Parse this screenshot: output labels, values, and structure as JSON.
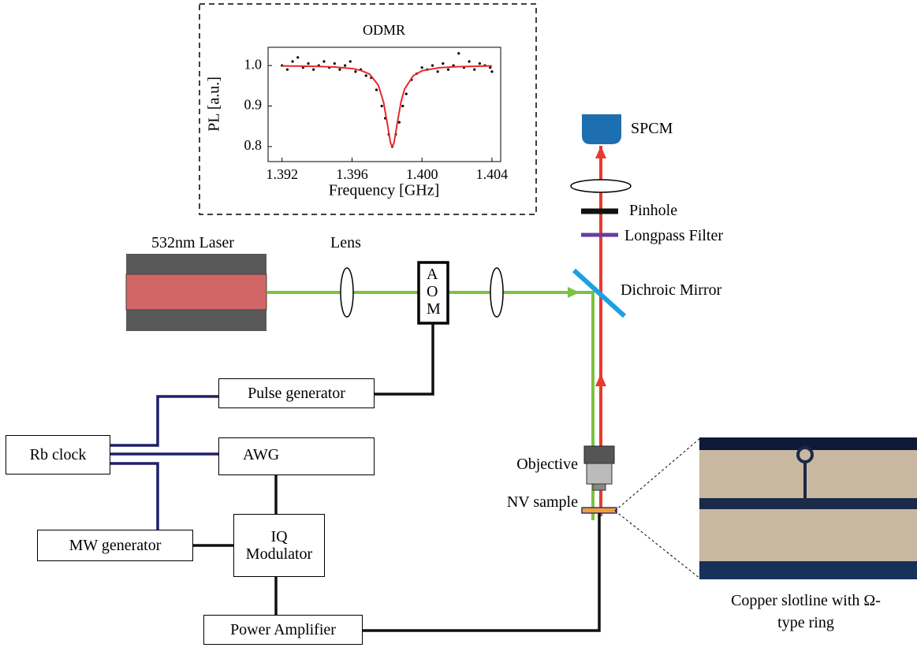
{
  "chart_data": {
    "type": "scatter",
    "title": "ODMR",
    "x_label": "Frequency [GHz]",
    "y_label": "PL [a.u.]",
    "xlim": [
      1.3912,
      1.4045
    ],
    "ylim": [
      0.763,
      1.045
    ],
    "xticks": [
      1.392,
      1.396,
      {
        "value": 1.4,
        "label": "1.400"
      },
      1.404
    ],
    "yticks": [
      {
        "value": 1,
        "label": "1.0"
      },
      0.9,
      0.8
    ],
    "series": [
      {
        "type": "scatter",
        "color": "#000000",
        "x": [
          1.392,
          1.3923,
          1.3926,
          1.3929,
          1.3932,
          1.3935,
          1.3938,
          1.3941,
          1.3944,
          1.3947,
          1.395,
          1.3953,
          1.3956,
          1.3959,
          1.3962,
          1.3965,
          1.3968,
          1.3971,
          1.3974,
          1.3977,
          1.3979,
          1.3981,
          1.3983,
          1.3985,
          1.3987,
          1.3989,
          1.3991,
          1.3994,
          1.3997,
          1.4,
          1.4003,
          1.4006,
          1.4009,
          1.4012,
          1.4015,
          1.4018,
          1.4021,
          1.4024,
          1.4027,
          1.403,
          1.4033,
          1.4036,
          1.4039,
          1.404
        ],
        "values": [
          1.0,
          0.99,
          1.01,
          1.02,
          0.995,
          1.005,
          0.99,
          1.0,
          1.01,
          0.995,
          1.005,
          0.99,
          1.0,
          1.01,
          0.985,
          0.99,
          0.975,
          0.97,
          0.94,
          0.9,
          0.87,
          0.83,
          0.8,
          0.83,
          0.86,
          0.9,
          0.93,
          0.965,
          0.98,
          0.995,
          0.99,
          1.0,
          0.985,
          1.005,
          0.99,
          1.0,
          1.03,
          0.995,
          1.01,
          0.99,
          1.005,
          1.0,
          0.995,
          0.985
        ]
      },
      {
        "type": "line",
        "color": "#e8282b",
        "x": [
          1.392,
          1.393,
          1.394,
          1.395,
          1.396,
          1.3965,
          1.397,
          1.3975,
          1.3978,
          1.398,
          1.3982,
          1.3983,
          1.3984,
          1.3986,
          1.3988,
          1.399,
          1.3995,
          1.4,
          1.401,
          1.402,
          1.403,
          1.404
        ],
        "values": [
          0.999,
          0.9986,
          0.9978,
          0.9964,
          0.9926,
          0.988,
          0.979,
          0.952,
          0.91,
          0.861,
          0.809,
          0.8,
          0.809,
          0.861,
          0.91,
          0.9415,
          0.975,
          0.987,
          0.9946,
          0.997,
          0.998,
          0.999
        ]
      }
    ]
  },
  "labels": {
    "laser": "532nm Laser",
    "lens": "Lens",
    "aom": "AOM",
    "spcm": "SPCM",
    "pinhole": "Pinhole",
    "filter": "Longpass Filter",
    "mirror": "Dichroic Mirror",
    "objective": "Objective",
    "sample": "NV sample",
    "pulse": "Pulse generator",
    "awg": "AWG",
    "rb": "Rb clock",
    "mw": "MW generator",
    "iq": "IQ Modulator",
    "amp": "Power Amplifier",
    "caption": "Copper slotline with Ω-type ring"
  }
}
